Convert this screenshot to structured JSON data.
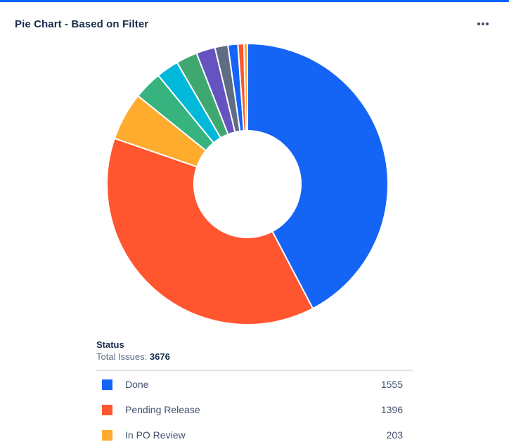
{
  "header": {
    "title": "Pie Chart - Based on Filter",
    "more_icon": "more-horizontal-icon"
  },
  "legend": {
    "heading": "Status",
    "total_label": "Total Issues:",
    "total_value": "3676"
  },
  "chart_data": {
    "type": "pie",
    "variant": "donut",
    "total": 3676,
    "slices": [
      {
        "label": "Done",
        "value": 1555,
        "color": "#1464f6"
      },
      {
        "label": "Pending Release",
        "value": 1396,
        "color": "#ff5630"
      },
      {
        "label": "In PO Review",
        "value": 203,
        "color": "#ffab2e"
      },
      {
        "label": "",
        "value": 120,
        "color": "#36b37e"
      },
      {
        "label": "",
        "value": 95,
        "color": "#00b8d9"
      },
      {
        "label": "",
        "value": 90,
        "color": "#3fa870"
      },
      {
        "label": "",
        "value": 80,
        "color": "#6554c0"
      },
      {
        "label": "",
        "value": 55,
        "color": "#5e6c84"
      },
      {
        "label": "",
        "value": 42,
        "color": "#1464f6"
      },
      {
        "label": "",
        "value": 25,
        "color": "#ff5630"
      },
      {
        "label": "",
        "value": 15,
        "color": "#ffab2e"
      }
    ],
    "visible_legend_count": 3
  }
}
